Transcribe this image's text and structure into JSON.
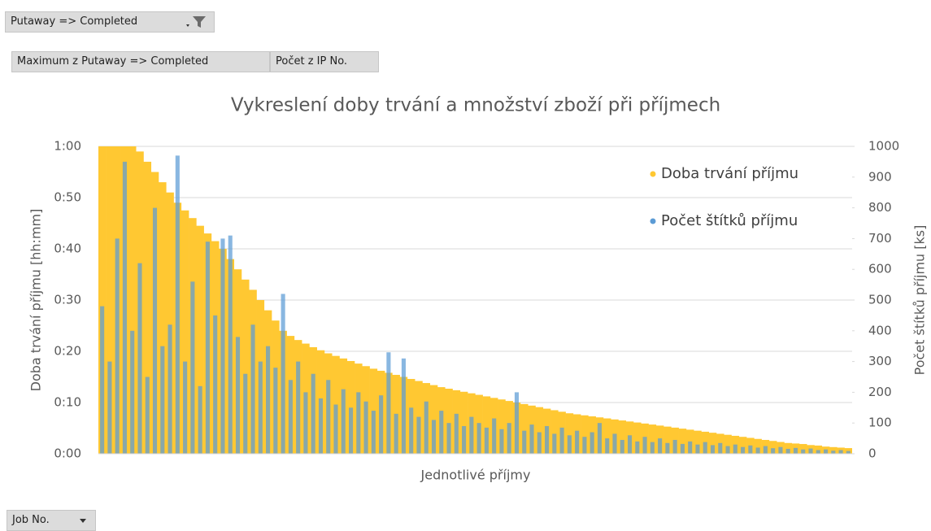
{
  "filter_button": "Putaway => Completed",
  "value_buttons": [
    "Maximum z Putaway => Completed",
    "Počet z IP No."
  ],
  "row_button": "Job No.",
  "chart_data": {
    "type": "bar",
    "title": "Vykreslení doby trvání a množství zboží při příjmech",
    "xlabel": "Jednotlivé příjmy",
    "ylabel": "Doba trvání příjmu [hh:mm]",
    "y2label": "Počet štítků příjmu [ks]",
    "categories": [
      null,
      null,
      null,
      null,
      null,
      null,
      null,
      null,
      null,
      null,
      null,
      null,
      null,
      null,
      null,
      null,
      null,
      null,
      null,
      null,
      null,
      null,
      null,
      null,
      null,
      null,
      null,
      null,
      null,
      null,
      null,
      null,
      null,
      null,
      null,
      null,
      null,
      null,
      null,
      null,
      null,
      null,
      null,
      null,
      null,
      null,
      null,
      null,
      null,
      null,
      null,
      null,
      null,
      null,
      null,
      null,
      null,
      null,
      null,
      null,
      null,
      null,
      null,
      null,
      null,
      null,
      null,
      null,
      null,
      null,
      null,
      null,
      null,
      null,
      null,
      null,
      null,
      null,
      null,
      null,
      null,
      null,
      null,
      null,
      null,
      null,
      null,
      null,
      null,
      null,
      null,
      null,
      null,
      null,
      null,
      null,
      null,
      null,
      null,
      null
    ],
    "series": [
      {
        "name": "Doba trvání příjmu",
        "color": "#ffc832",
        "axis": "y",
        "values": [
          60,
          60,
          60,
          60,
          60,
          59,
          57,
          55,
          53,
          51,
          49,
          47.5,
          46,
          44.5,
          43,
          41.5,
          40,
          38,
          36,
          34,
          32,
          30,
          28,
          26,
          24,
          23,
          22.2,
          21.5,
          20.8,
          20.2,
          19.6,
          19.1,
          18.6,
          18.1,
          17.6,
          17.1,
          16.6,
          16.2,
          15.8,
          15.4,
          15,
          14.6,
          14.2,
          13.8,
          13.4,
          13,
          12.7,
          12.4,
          12.1,
          11.8,
          11.5,
          11.2,
          10.9,
          10.6,
          10.3,
          10,
          9.7,
          9.4,
          9.1,
          8.8,
          8.5,
          8.2,
          7.9,
          7.7,
          7.5,
          7.3,
          7.1,
          6.9,
          6.7,
          6.5,
          6.3,
          6.1,
          5.9,
          5.7,
          5.5,
          5.3,
          5.1,
          4.9,
          4.7,
          4.5,
          4.3,
          4.1,
          3.9,
          3.7,
          3.5,
          3.3,
          3.1,
          2.9,
          2.7,
          2.5,
          2.3,
          2.1,
          2,
          1.9,
          1.7,
          1.6,
          1.4,
          1.3,
          1.2,
          1.1
        ]
      },
      {
        "name": "Počet štítků příjmu",
        "color": "#5b9bd5",
        "axis": "y2",
        "values": [
          480,
          300,
          700,
          950,
          400,
          620,
          250,
          800,
          350,
          420,
          970,
          300,
          560,
          220,
          690,
          450,
          700,
          710,
          380,
          260,
          420,
          300,
          350,
          280,
          520,
          240,
          300,
          200,
          260,
          180,
          240,
          160,
          210,
          150,
          200,
          170,
          140,
          190,
          330,
          130,
          310,
          150,
          120,
          170,
          110,
          140,
          100,
          130,
          90,
          120,
          100,
          85,
          115,
          80,
          100,
          200,
          75,
          95,
          70,
          90,
          65,
          85,
          60,
          75,
          55,
          70,
          100,
          50,
          65,
          45,
          60,
          40,
          55,
          38,
          50,
          35,
          45,
          32,
          40,
          30,
          38,
          28,
          35,
          25,
          30,
          22,
          27,
          20,
          25,
          18,
          22,
          16,
          19,
          14,
          17,
          12,
          14,
          10,
          12,
          9
        ]
      }
    ],
    "ylim": [
      0,
      60
    ],
    "yticks": [
      {
        "value": 0,
        "label": "0:00"
      },
      {
        "value": 10,
        "label": "0:10"
      },
      {
        "value": 20,
        "label": "0:20"
      },
      {
        "value": 30,
        "label": "0:30"
      },
      {
        "value": 40,
        "label": "0:40"
      },
      {
        "value": 50,
        "label": "0:50"
      },
      {
        "value": 60,
        "label": "1:00"
      }
    ],
    "y2lim": [
      0,
      1000
    ],
    "y2ticks": [
      0,
      100,
      200,
      300,
      400,
      500,
      600,
      700,
      800,
      900,
      1000
    ],
    "grid": true,
    "legend": "top-right"
  }
}
